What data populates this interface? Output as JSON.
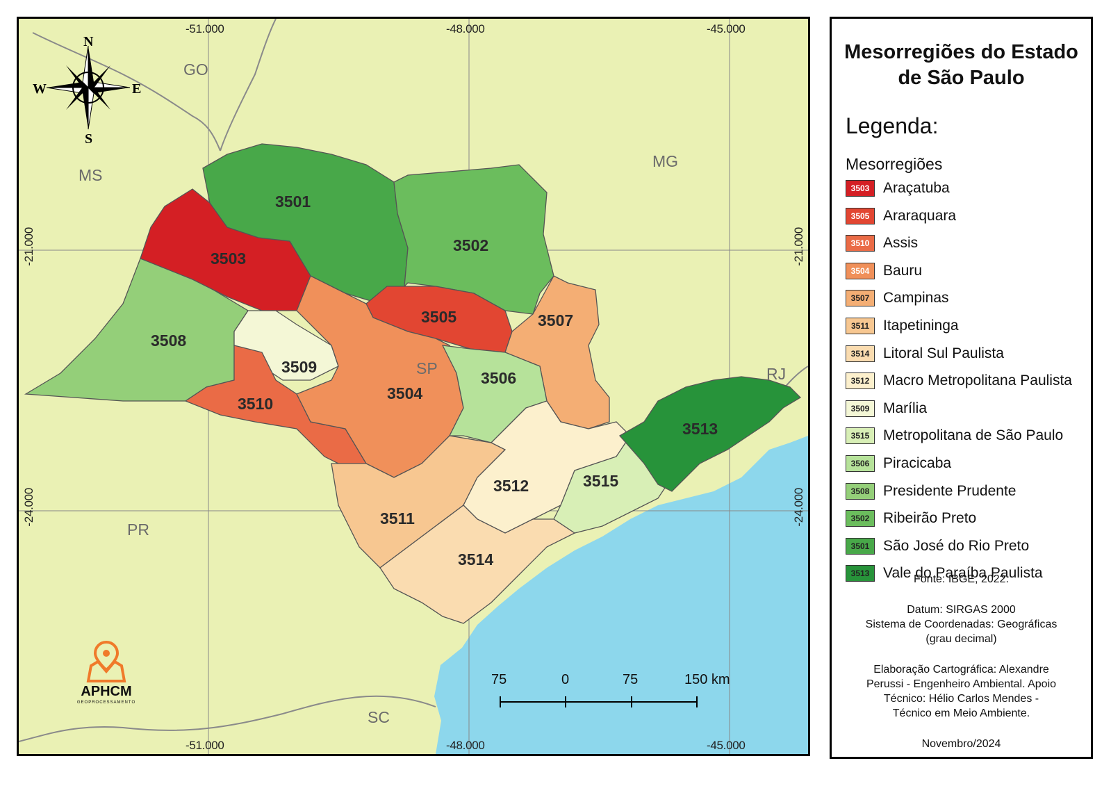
{
  "title": "Mesorregiões do Estado de São Paulo",
  "legend": {
    "heading": "Legenda:",
    "subheading": "Mesorregiões",
    "items": [
      {
        "code": "3503",
        "name": "Araçatuba",
        "color": "#d41f24"
      },
      {
        "code": "3505",
        "name": "Araraquara",
        "color": "#e24632"
      },
      {
        "code": "3510",
        "name": "Assis",
        "color": "#ea6b46"
      },
      {
        "code": "3504",
        "name": "Bauru",
        "color": "#f0905a"
      },
      {
        "code": "3507",
        "name": "Campinas",
        "color": "#f4ae74"
      },
      {
        "code": "3511",
        "name": "Itapetininga",
        "color": "#f7c791"
      },
      {
        "code": "3514",
        "name": "Litoral Sul Paulista",
        "color": "#fadcb0"
      },
      {
        "code": "3512",
        "name": "Macro Metropolitana Paulista",
        "color": "#fcf0cd"
      },
      {
        "code": "3509",
        "name": "Marília",
        "color": "#f4f7d6"
      },
      {
        "code": "3515",
        "name": "Metropolitana de São Paulo",
        "color": "#d8efb6"
      },
      {
        "code": "3506",
        "name": "Piracicaba",
        "color": "#b6e29a"
      },
      {
        "code": "3508",
        "name": "Presidente Prudente",
        "color": "#94cf79"
      },
      {
        "code": "3502",
        "name": "Ribeirão Preto",
        "color": "#6bbd5d"
      },
      {
        "code": "3501",
        "name": "São José do Rio Preto",
        "color": "#48a849"
      },
      {
        "code": "3513",
        "name": "Vale do Paraíba Paulista",
        "color": "#27933a"
      }
    ]
  },
  "info": {
    "source": "Fonte: IBGE, 2022.",
    "datum": "Datum: SIRGAS 2000",
    "crs": "Sistema de Coordenadas: Geográficas",
    "crs_unit": "(grau decimal)",
    "credit_1": "Elaboração Cartográfica: Alexandre",
    "credit_2": "Perussi - Engenheiro Ambiental. Apoio",
    "credit_3": "Técnico: Hélio Carlos Mendes -",
    "credit_4": "Técnico em Meio Ambiente.",
    "date": "Novembro/2024"
  },
  "map": {
    "coords_top": [
      "-51.000",
      "-48.000",
      "-45.000"
    ],
    "coords_bottom": [
      "-51.000",
      "-48.000",
      "-45.000"
    ],
    "coords_left": [
      "-21.000",
      "-24.000"
    ],
    "coords_right": [
      "-21.000",
      "-24.000"
    ],
    "states": [
      "GO",
      "MS",
      "MG",
      "SP",
      "RJ",
      "PR",
      "SC"
    ],
    "region_codes": [
      "3501",
      "3502",
      "3503",
      "3504",
      "3505",
      "3506",
      "3507",
      "3508",
      "3509",
      "3510",
      "3511",
      "3512",
      "3513",
      "3514",
      "3515"
    ],
    "land_color": "#eaf1b4",
    "ocean_color": "#8dd7ec",
    "compass": {
      "n": "N",
      "s": "S",
      "e": "E",
      "w": "W"
    },
    "scale": {
      "labels": [
        "75",
        "0",
        "75",
        "150 km"
      ]
    }
  },
  "logo": {
    "name": "APHCM",
    "subtitle": "GEOPROCESSAMENTO"
  }
}
